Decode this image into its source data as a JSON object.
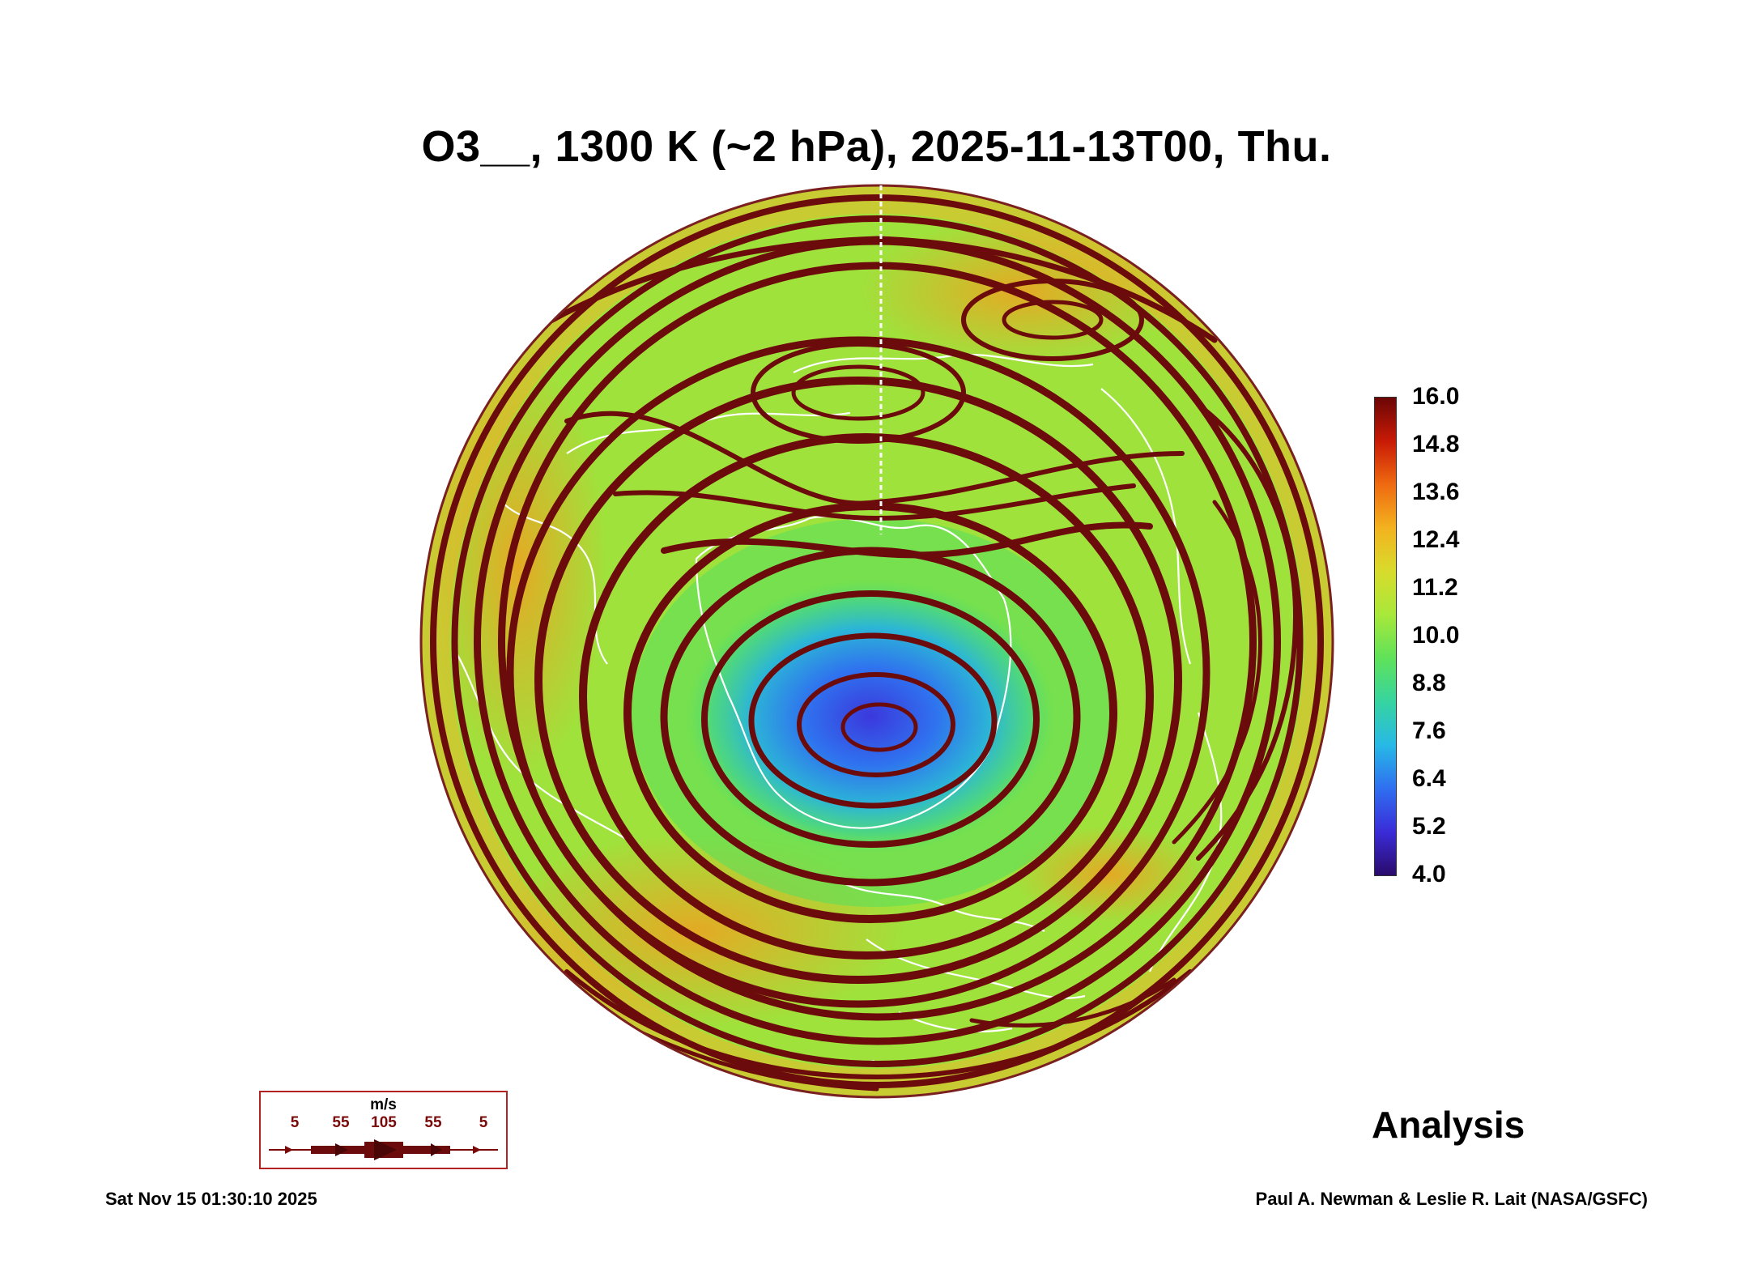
{
  "title": "O3__, 1300 K (~2 hPa), 2025-11-13T00, Thu.",
  "colorbar": {
    "labels": [
      "16.0",
      "14.8",
      "13.6",
      "12.4",
      "11.2",
      "10.0",
      "8.8",
      "7.6",
      "6.4",
      "5.2",
      "4.0"
    ],
    "min": 4.0,
    "max": 16.0,
    "colors": [
      "#2a0a6b",
      "#3a2cd8",
      "#2f6ff0",
      "#27b9e6",
      "#36d4a0",
      "#5fe25a",
      "#a8e83a",
      "#d8dc2c",
      "#f3b21f",
      "#ef6a10",
      "#c81a06",
      "#6b0606"
    ]
  },
  "map": {
    "projection": "orthographic north polar",
    "field": "O3 mixing ratio",
    "streamline_color": "#6b0b0b",
    "coastline_color": "#ffffff",
    "ozone_minimum_region": "over Greenland / Arctic",
    "ozone_maximum_region": "mid-latitude collar"
  },
  "analysis_label": "Analysis",
  "wind_legend": {
    "unit": "m/s",
    "ticks": [
      "5",
      "55",
      "105",
      "55",
      "5"
    ]
  },
  "footer": {
    "date": "Sat Nov 15 01:30:10 2025",
    "credit": "Paul A. Newman & Leslie R. Lait (NASA/GSFC)"
  }
}
